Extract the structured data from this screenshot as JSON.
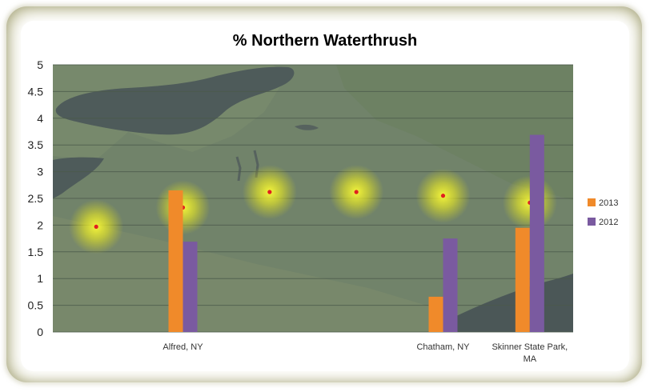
{
  "chart_data": {
    "type": "bar",
    "title": "% Northern Waterthrush",
    "xlabel": "",
    "ylabel": "",
    "ylim": [
      0,
      5
    ],
    "yticks": [
      "0",
      "0.5",
      "1",
      "1.5",
      "2",
      "2.5",
      "3",
      "3.5",
      "4",
      "4.5",
      "5"
    ],
    "grid": true,
    "legend_position": "right",
    "categories": [
      "",
      "Alfred, NY",
      "",
      "",
      "Chatham, NY",
      "Skinner State Park, MA"
    ],
    "series": [
      {
        "name": "2013",
        "color": "#f08a2a",
        "values": [
          null,
          2.65,
          null,
          null,
          0.66,
          1.95
        ]
      },
      {
        "name": "2012",
        "color": "#7a5aa0",
        "values": [
          null,
          1.69,
          null,
          null,
          1.75,
          3.69
        ]
      }
    ],
    "background": "satellite map of New York / New England with glowing site markers",
    "site_marker_color": "#e02020",
    "site_glow_color": "#f0f000"
  }
}
